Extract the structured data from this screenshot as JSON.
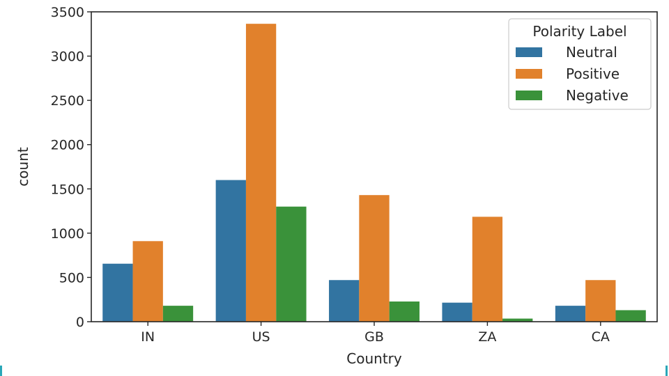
{
  "chart_data": {
    "type": "bar",
    "title": "",
    "xlabel": "Country",
    "ylabel": "count",
    "categories": [
      "IN",
      "US",
      "GB",
      "ZA",
      "CA"
    ],
    "series": [
      {
        "name": "Neutral",
        "color": "#3274a1",
        "values": [
          655,
          1600,
          470,
          215,
          180
        ]
      },
      {
        "name": "Positive",
        "color": "#e1812c",
        "values": [
          910,
          3365,
          1430,
          1185,
          470
        ]
      },
      {
        "name": "Negative",
        "color": "#3a923a",
        "values": [
          180,
          1300,
          228,
          35,
          130
        ]
      }
    ],
    "ylim": [
      0,
      3500
    ],
    "yticks": [
      0,
      500,
      1000,
      1500,
      2000,
      2500,
      3000,
      3500
    ],
    "grid": false,
    "legend": {
      "title": "Polarity Label",
      "position": "top-right"
    }
  }
}
